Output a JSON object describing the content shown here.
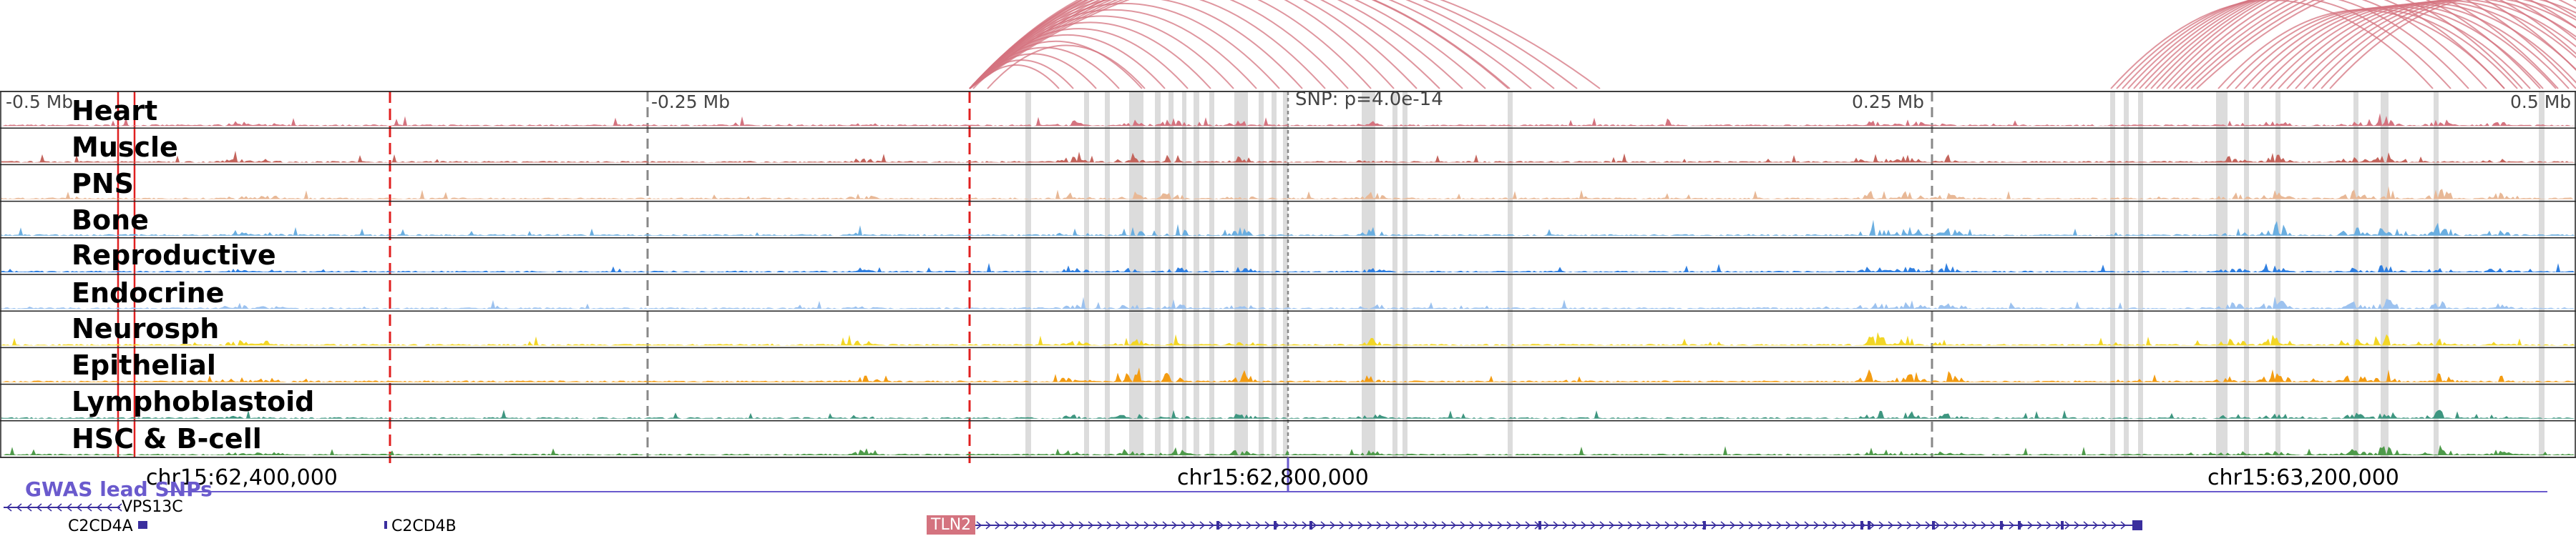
{
  "browser": {
    "ruler": {
      "ticks": [
        "-0.5 Mb",
        "-0.25 Mb",
        "0.25 Mb",
        "0.5 Mb"
      ],
      "snp_label": "SNP: p=4.0e-14"
    },
    "tracks": [
      {
        "name": "Heart",
        "color": "#d4737f"
      },
      {
        "name": "Muscle",
        "color": "#c4645c"
      },
      {
        "name": "PNS",
        "color": "#e8b896"
      },
      {
        "name": "Bone",
        "color": "#6aaee0"
      },
      {
        "name": "Reproductive",
        "color": "#2f7fe0"
      },
      {
        "name": "Endocrine",
        "color": "#9cc2ef"
      },
      {
        "name": "Neurosph",
        "color": "#f2d626"
      },
      {
        "name": "Epithelial",
        "color": "#f39c12"
      },
      {
        "name": "Lymphoblastoid",
        "color": "#3e9680"
      },
      {
        "name": "HSC & B-cell",
        "color": "#4e9a4a"
      }
    ],
    "coordinates": [
      "chr15:62,400,000",
      "chr15:62,800,000",
      "chr15:63,200,000"
    ],
    "gwas_label": "GWAS lead SNPs",
    "genes": {
      "vps13c": "VPS13C",
      "c2cd4a": "C2CD4A",
      "c2cd4b": "C2CD4B",
      "tln2": "TLN2"
    },
    "colors": {
      "loop_arc": "#d4737f",
      "highlight_line": "#e02020",
      "shaded_band": "#dcdcdc",
      "gwas": "#6a5acd",
      "gene_strand": "#3a2e9e"
    }
  }
}
